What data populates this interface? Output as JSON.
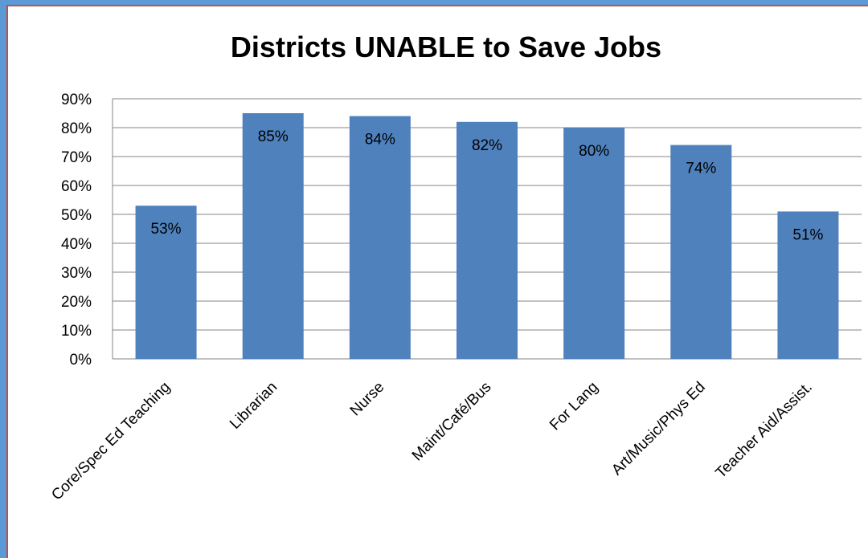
{
  "chart_data": {
    "type": "bar",
    "title": "Districts UNABLE to Save Jobs",
    "categories": [
      "Core/Spec Ed Teaching",
      "Librarian",
      "Nurse",
      "Maint/Café/Bus",
      "For Lang",
      "Art/Music/Phys Ed",
      "Teacher Aid/Assist."
    ],
    "values": [
      53,
      85,
      84,
      82,
      80,
      74,
      51
    ],
    "data_labels": [
      "53%",
      "85%",
      "84%",
      "82%",
      "80%",
      "74%",
      "51%"
    ],
    "y_ticks": [
      "0%",
      "10%",
      "20%",
      "30%",
      "40%",
      "50%",
      "60%",
      "70%",
      "80%",
      "90%"
    ],
    "ylim": [
      0,
      90
    ],
    "grid": true,
    "legend": "none",
    "bar_color": "#4f81bd",
    "grid_color": "#868686"
  }
}
